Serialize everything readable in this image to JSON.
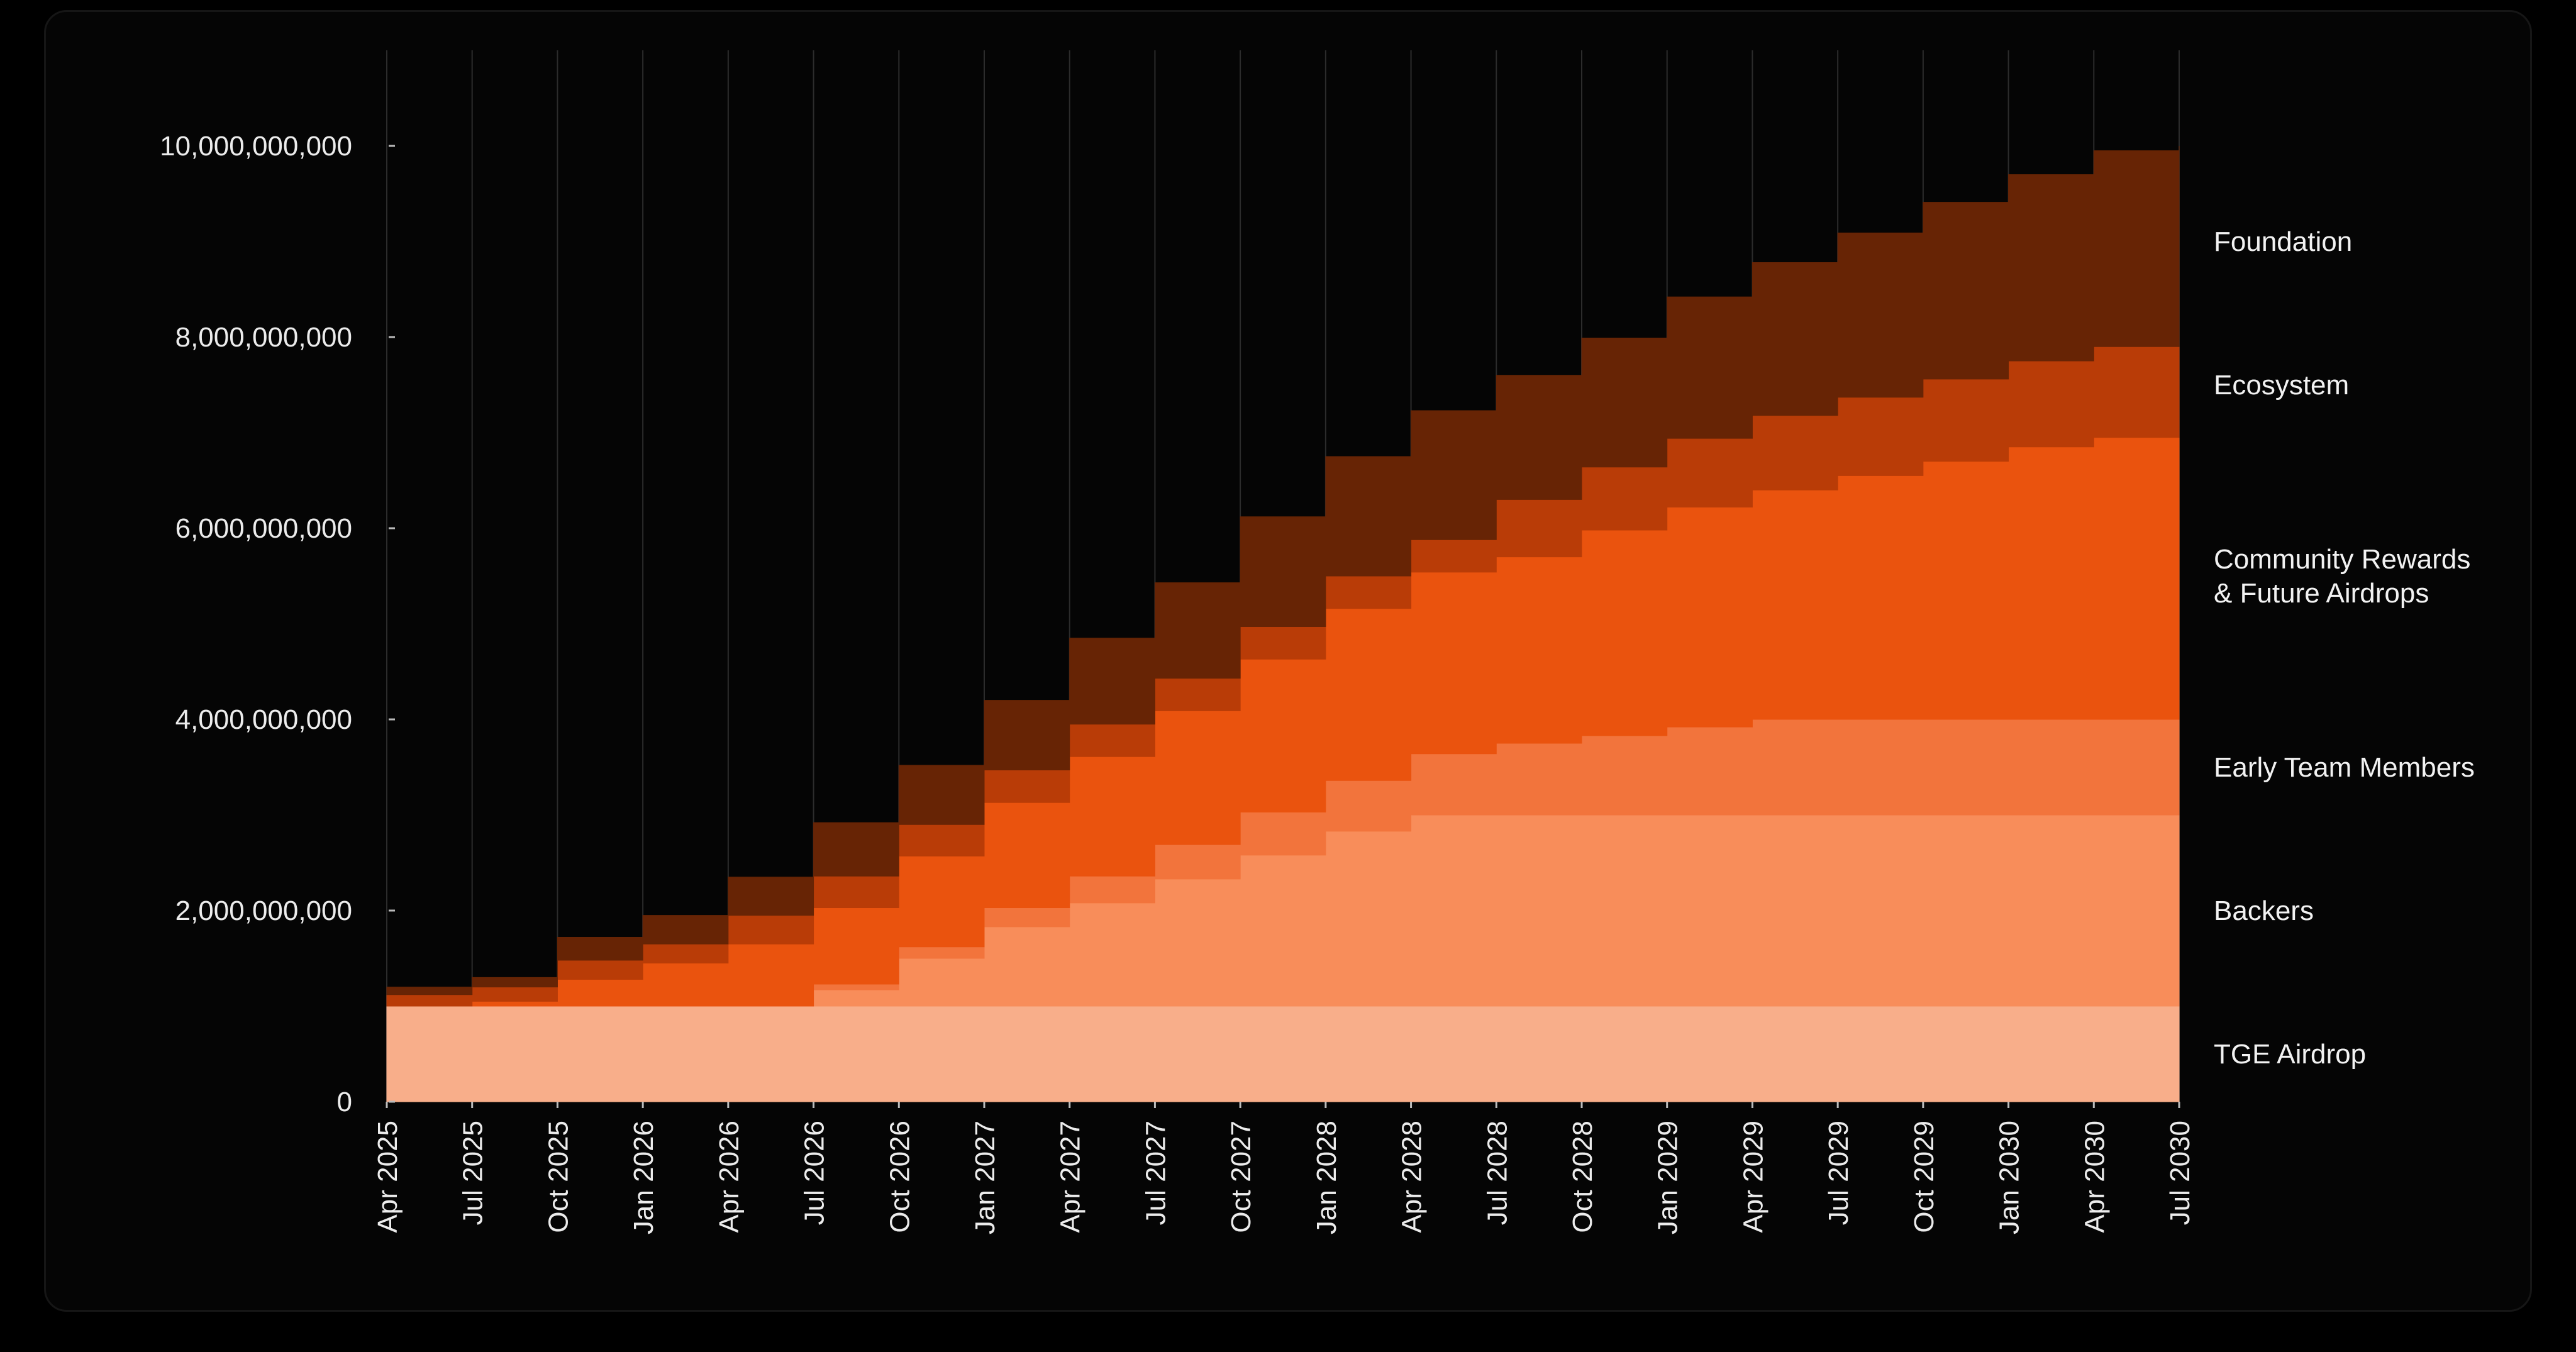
{
  "chart_data": {
    "type": "area",
    "stacked": true,
    "step": true,
    "title": "",
    "xlabel": "",
    "ylabel": "",
    "ylim": [
      0,
      11000000000
    ],
    "grid": {
      "vertical": true,
      "horizontal": false
    },
    "legend": "right-side labels",
    "x": [
      "Apr 2025",
      "Jul 2025",
      "Oct 2025",
      "Jan 2026",
      "Apr 2026",
      "Jul 2026",
      "Oct 2026",
      "Jan 2027",
      "Apr 2027",
      "Jul 2027",
      "Oct 2027",
      "Jan 2028",
      "Apr 2028",
      "Jul 2028",
      "Oct 2028",
      "Jan 2029",
      "Apr 2029",
      "Jul 2029",
      "Oct 2029",
      "Jan 2030",
      "Apr 2030",
      "Jul 2030"
    ],
    "yticks": [
      0,
      2000000000,
      4000000000,
      6000000000,
      8000000000,
      10000000000
    ],
    "ytick_labels": [
      "0",
      "2,000,000,000",
      "4,000,000,000",
      "6,000,000,000",
      "8,000,000,000",
      "10,000,000,000"
    ],
    "series": [
      {
        "name": "TGE Airdrop",
        "color": "#f8ae8a",
        "values": [
          1000000000,
          1000000000,
          1000000000,
          1000000000,
          1000000000,
          1000000000,
          1000000000,
          1000000000,
          1000000000,
          1000000000,
          1000000000,
          1000000000,
          1000000000,
          1000000000,
          1000000000,
          1000000000,
          1000000000,
          1000000000,
          1000000000,
          1000000000,
          1000000000,
          1000000000
        ]
      },
      {
        "name": "Backers",
        "color": "#f88d5a",
        "values": [
          0,
          0,
          0,
          0,
          0,
          170000000,
          500000000,
          830000000,
          1080000000,
          1330000000,
          1580000000,
          1830000000,
          2000000000,
          2000000000,
          2000000000,
          2000000000,
          2000000000,
          2000000000,
          2000000000,
          2000000000,
          2000000000,
          2000000000
        ]
      },
      {
        "name": "Early Team Members",
        "color": "#f2743c",
        "values": [
          0,
          0,
          0,
          0,
          0,
          60000000,
          120000000,
          200000000,
          280000000,
          360000000,
          450000000,
          530000000,
          640000000,
          750000000,
          830000000,
          920000000,
          1000000000,
          1000000000,
          1000000000,
          1000000000,
          1000000000,
          1000000000
        ]
      },
      {
        "name": "Community Rewards & Future Airdrops",
        "color": "#ea530e",
        "values": [
          0,
          50000000,
          280000000,
          450000000,
          650000000,
          800000000,
          950000000,
          1100000000,
          1250000000,
          1400000000,
          1600000000,
          1800000000,
          1900000000,
          1950000000,
          2150000000,
          2300000000,
          2400000000,
          2550000000,
          2700000000,
          2850000000,
          2950000000,
          3000000000
        ]
      },
      {
        "name": "Ecosystem",
        "color": "#b93c07",
        "values": [
          120000000,
          150000000,
          200000000,
          200000000,
          300000000,
          330000000,
          330000000,
          340000000,
          340000000,
          340000000,
          340000000,
          340000000,
          340000000,
          600000000,
          660000000,
          720000000,
          780000000,
          820000000,
          860000000,
          900000000,
          950000000,
          1000000000
        ]
      },
      {
        "name": "Foundation",
        "color": "#672405",
        "values": [
          80000000,
          100000000,
          240000000,
          300000000,
          400000000,
          560000000,
          620000000,
          730000000,
          900000000,
          1000000000,
          1150000000,
          1250000000,
          1350000000,
          1300000000,
          1350000000,
          1480000000,
          1600000000,
          1720000000,
          1850000000,
          1950000000,
          2050000000,
          2000000000
        ]
      }
    ]
  }
}
